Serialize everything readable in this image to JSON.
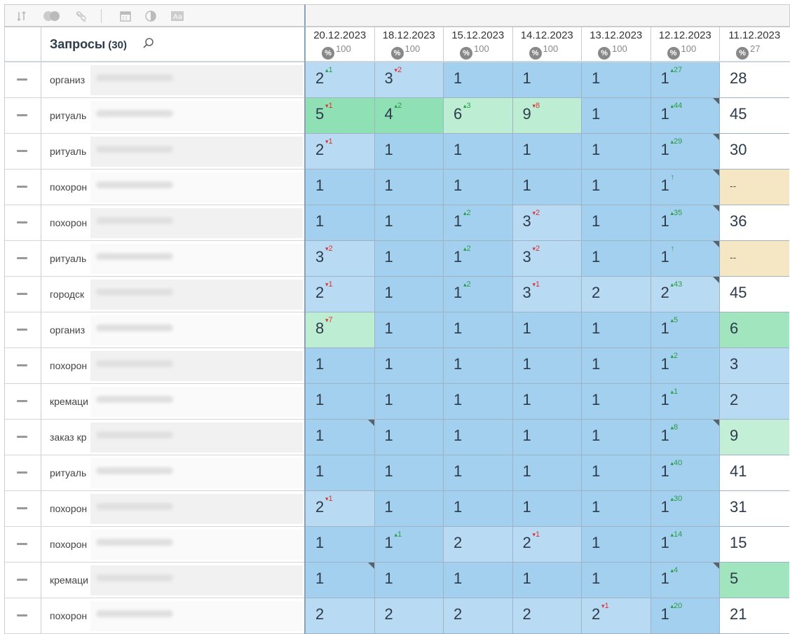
{
  "header": {
    "title": "Запросы",
    "count": "(30)"
  },
  "colors": {
    "dark_blue": "#a3d0ee",
    "light_blue": "#b9daf3",
    "green": "#8fe0b4",
    "light_green": "#bdeed3",
    "yellow": "#f5e7c4"
  },
  "columns": [
    {
      "date": "20.12.2023",
      "pct": "100"
    },
    {
      "date": "18.12.2023",
      "pct": "100"
    },
    {
      "date": "15.12.2023",
      "pct": "100"
    },
    {
      "date": "14.12.2023",
      "pct": "100"
    },
    {
      "date": "13.12.2023",
      "pct": "100"
    },
    {
      "date": "12.12.2023",
      "pct": "100"
    },
    {
      "date": "11.12.2023",
      "pct": "27"
    }
  ],
  "rows": [
    {
      "query": "организ",
      "cells": [
        {
          "v": "2",
          "ch": "1",
          "d": "up",
          "c": "c-light"
        },
        {
          "v": "3",
          "ch": "2",
          "d": "dn",
          "c": "c-light"
        },
        {
          "v": "1",
          "c": "c-dark"
        },
        {
          "v": "1",
          "c": "c-dark"
        },
        {
          "v": "1",
          "c": "c-dark"
        },
        {
          "v": "1",
          "ch": "27",
          "d": "up",
          "c": "c-dark"
        },
        {
          "v": "28",
          "c": "c-white"
        }
      ]
    },
    {
      "query": "ритуаль",
      "cells": [
        {
          "v": "5",
          "ch": "1",
          "d": "dn",
          "c": "c-green"
        },
        {
          "v": "4",
          "ch": "2",
          "d": "up",
          "c": "c-green"
        },
        {
          "v": "6",
          "ch": "3",
          "d": "up",
          "c": "c-lgreen"
        },
        {
          "v": "9",
          "ch": "8",
          "d": "dn",
          "c": "c-lgreen"
        },
        {
          "v": "1",
          "c": "c-dark"
        },
        {
          "v": "1",
          "ch": "44",
          "d": "up",
          "c": "c-dark",
          "k": 1
        },
        {
          "v": "45",
          "c": "c-white"
        }
      ]
    },
    {
      "query": "ритуаль",
      "cells": [
        {
          "v": "2",
          "ch": "1",
          "d": "dn",
          "c": "c-light"
        },
        {
          "v": "1",
          "c": "c-dark"
        },
        {
          "v": "1",
          "c": "c-dark"
        },
        {
          "v": "1",
          "c": "c-dark"
        },
        {
          "v": "1",
          "c": "c-dark"
        },
        {
          "v": "1",
          "ch": "29",
          "d": "up",
          "c": "c-dark",
          "k": 1
        },
        {
          "v": "30",
          "c": "c-white"
        }
      ]
    },
    {
      "query": "похорон",
      "cells": [
        {
          "v": "1",
          "c": "c-dark"
        },
        {
          "v": "1",
          "c": "c-dark"
        },
        {
          "v": "1",
          "c": "c-dark"
        },
        {
          "v": "1",
          "c": "c-dark"
        },
        {
          "v": "1",
          "c": "c-dark"
        },
        {
          "v": "1",
          "ch": "↑",
          "d": "up",
          "c": "c-dark",
          "k": 1
        },
        {
          "v": "--",
          "c": "c-yellow",
          "s": 1
        }
      ]
    },
    {
      "query": "похорон",
      "cells": [
        {
          "v": "1",
          "c": "c-dark"
        },
        {
          "v": "1",
          "c": "c-dark"
        },
        {
          "v": "1",
          "ch": "2",
          "d": "up",
          "c": "c-dark"
        },
        {
          "v": "3",
          "ch": "2",
          "d": "dn",
          "c": "c-light"
        },
        {
          "v": "1",
          "c": "c-dark"
        },
        {
          "v": "1",
          "ch": "35",
          "d": "up",
          "c": "c-dark",
          "k": 1
        },
        {
          "v": "36",
          "c": "c-white"
        }
      ]
    },
    {
      "query": "ритуаль",
      "cells": [
        {
          "v": "3",
          "ch": "2",
          "d": "dn",
          "c": "c-light"
        },
        {
          "v": "1",
          "c": "c-dark"
        },
        {
          "v": "1",
          "ch": "2",
          "d": "up",
          "c": "c-dark"
        },
        {
          "v": "3",
          "ch": "2",
          "d": "dn",
          "c": "c-light"
        },
        {
          "v": "1",
          "c": "c-dark"
        },
        {
          "v": "1",
          "ch": "↑",
          "d": "up",
          "c": "c-dark",
          "k": 1
        },
        {
          "v": "--",
          "c": "c-yellow",
          "s": 1
        }
      ]
    },
    {
      "query": "городск",
      "cells": [
        {
          "v": "2",
          "ch": "1",
          "d": "dn",
          "c": "c-light"
        },
        {
          "v": "1",
          "c": "c-dark"
        },
        {
          "v": "1",
          "ch": "2",
          "d": "up",
          "c": "c-dark"
        },
        {
          "v": "3",
          "ch": "1",
          "d": "dn",
          "c": "c-light"
        },
        {
          "v": "2",
          "c": "c-light"
        },
        {
          "v": "2",
          "ch": "43",
          "d": "up",
          "c": "c-light",
          "k": 1
        },
        {
          "v": "45",
          "c": "c-white"
        }
      ]
    },
    {
      "query": "организ",
      "cells": [
        {
          "v": "8",
          "ch": "7",
          "d": "dn",
          "c": "c-lgreen"
        },
        {
          "v": "1",
          "c": "c-dark"
        },
        {
          "v": "1",
          "c": "c-dark"
        },
        {
          "v": "1",
          "c": "c-dark"
        },
        {
          "v": "1",
          "c": "c-dark"
        },
        {
          "v": "1",
          "ch": "5",
          "d": "up",
          "c": "c-dark"
        },
        {
          "v": "6",
          "c": "c-green2"
        }
      ]
    },
    {
      "query": "похорон",
      "cells": [
        {
          "v": "1",
          "c": "c-dark"
        },
        {
          "v": "1",
          "c": "c-dark"
        },
        {
          "v": "1",
          "c": "c-dark"
        },
        {
          "v": "1",
          "c": "c-dark"
        },
        {
          "v": "1",
          "c": "c-dark"
        },
        {
          "v": "1",
          "ch": "2",
          "d": "up",
          "c": "c-dark"
        },
        {
          "v": "3",
          "c": "c-lb2"
        }
      ]
    },
    {
      "query": "кремаци",
      "cells": [
        {
          "v": "1",
          "c": "c-dark"
        },
        {
          "v": "1",
          "c": "c-dark"
        },
        {
          "v": "1",
          "c": "c-dark"
        },
        {
          "v": "1",
          "c": "c-dark"
        },
        {
          "v": "1",
          "c": "c-dark"
        },
        {
          "v": "1",
          "ch": "1",
          "d": "up",
          "c": "c-dark"
        },
        {
          "v": "2",
          "c": "c-lb2"
        }
      ]
    },
    {
      "query": "заказ кр",
      "cells": [
        {
          "v": "1",
          "c": "c-dark",
          "k": 1
        },
        {
          "v": "1",
          "c": "c-dark"
        },
        {
          "v": "1",
          "c": "c-dark"
        },
        {
          "v": "1",
          "c": "c-dark"
        },
        {
          "v": "1",
          "c": "c-dark"
        },
        {
          "v": "1",
          "ch": "8",
          "d": "up",
          "c": "c-dark",
          "k": 1
        },
        {
          "v": "9",
          "c": "c-lgreen2"
        }
      ]
    },
    {
      "query": "ритуаль",
      "cells": [
        {
          "v": "1",
          "c": "c-dark"
        },
        {
          "v": "1",
          "c": "c-dark"
        },
        {
          "v": "1",
          "c": "c-dark"
        },
        {
          "v": "1",
          "c": "c-dark"
        },
        {
          "v": "1",
          "c": "c-dark"
        },
        {
          "v": "1",
          "ch": "40",
          "d": "up",
          "c": "c-dark"
        },
        {
          "v": "41",
          "c": "c-white"
        }
      ]
    },
    {
      "query": "похорон",
      "cells": [
        {
          "v": "2",
          "ch": "1",
          "d": "dn",
          "c": "c-light"
        },
        {
          "v": "1",
          "c": "c-dark"
        },
        {
          "v": "1",
          "c": "c-dark"
        },
        {
          "v": "1",
          "c": "c-dark"
        },
        {
          "v": "1",
          "c": "c-dark"
        },
        {
          "v": "1",
          "ch": "30",
          "d": "up",
          "c": "c-dark"
        },
        {
          "v": "31",
          "c": "c-white"
        }
      ]
    },
    {
      "query": "похорон",
      "cells": [
        {
          "v": "1",
          "c": "c-dark"
        },
        {
          "v": "1",
          "ch": "1",
          "d": "up",
          "c": "c-dark"
        },
        {
          "v": "2",
          "c": "c-light"
        },
        {
          "v": "2",
          "ch": "1",
          "d": "dn",
          "c": "c-light"
        },
        {
          "v": "1",
          "c": "c-dark"
        },
        {
          "v": "1",
          "ch": "14",
          "d": "up",
          "c": "c-dark"
        },
        {
          "v": "15",
          "c": "c-white"
        }
      ]
    },
    {
      "query": "кремаци",
      "cells": [
        {
          "v": "1",
          "c": "c-dark",
          "k": 1
        },
        {
          "v": "1",
          "c": "c-dark"
        },
        {
          "v": "1",
          "c": "c-dark"
        },
        {
          "v": "1",
          "c": "c-dark"
        },
        {
          "v": "1",
          "c": "c-dark"
        },
        {
          "v": "1",
          "ch": "4",
          "d": "up",
          "c": "c-dark",
          "k": 1
        },
        {
          "v": "5",
          "c": "c-green2"
        }
      ]
    },
    {
      "query": "похорон",
      "cells": [
        {
          "v": "2",
          "c": "c-light"
        },
        {
          "v": "2",
          "c": "c-light"
        },
        {
          "v": "2",
          "c": "c-light"
        },
        {
          "v": "2",
          "c": "c-light"
        },
        {
          "v": "2",
          "ch": "1",
          "d": "dn",
          "c": "c-light"
        },
        {
          "v": "1",
          "ch": "20",
          "d": "up",
          "c": "c-dark"
        },
        {
          "v": "21",
          "c": "c-white"
        }
      ]
    }
  ]
}
